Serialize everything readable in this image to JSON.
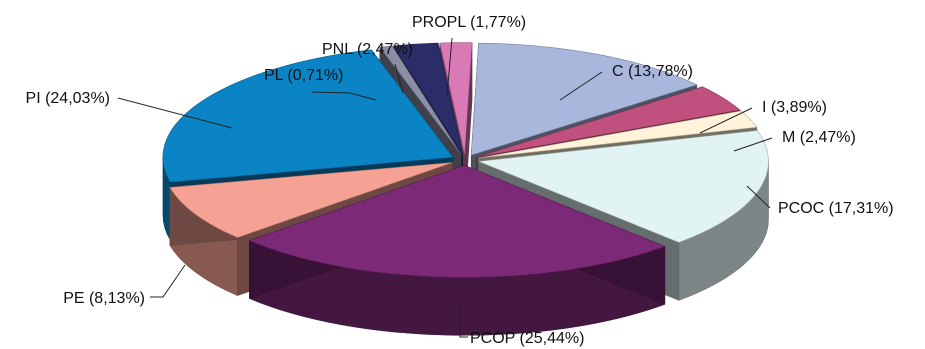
{
  "chart_data": {
    "type": "pie",
    "title": "",
    "categories": [
      "C",
      "I",
      "M",
      "PCOC",
      "PCOP",
      "PE",
      "PI",
      "PL",
      "PNL",
      "PROPL"
    ],
    "values": [
      13.78,
      3.89,
      2.47,
      17.31,
      25.44,
      8.13,
      24.03,
      0.71,
      2.47,
      1.77
    ],
    "labels": [
      "C (13,78%)",
      "I (3,89%)",
      "M (2,47%)",
      "PCOC (17,31%)",
      "PCOP (25,44%)",
      "PE (8,13%)",
      "PI (24,03%)",
      "PL (0,71%)",
      "PNL (2,47%)",
      "PROPL (1,77%)"
    ],
    "colors": [
      "#A9B7DC",
      "#C0507E",
      "#FFF4D9",
      "#E1F3F3",
      "#7C2977",
      "#F5A193",
      "#0A84C4",
      "#8B8FA6",
      "#2B2D68",
      "#D97AB6"
    ],
    "style": "3d-exploded",
    "legend": "none"
  }
}
